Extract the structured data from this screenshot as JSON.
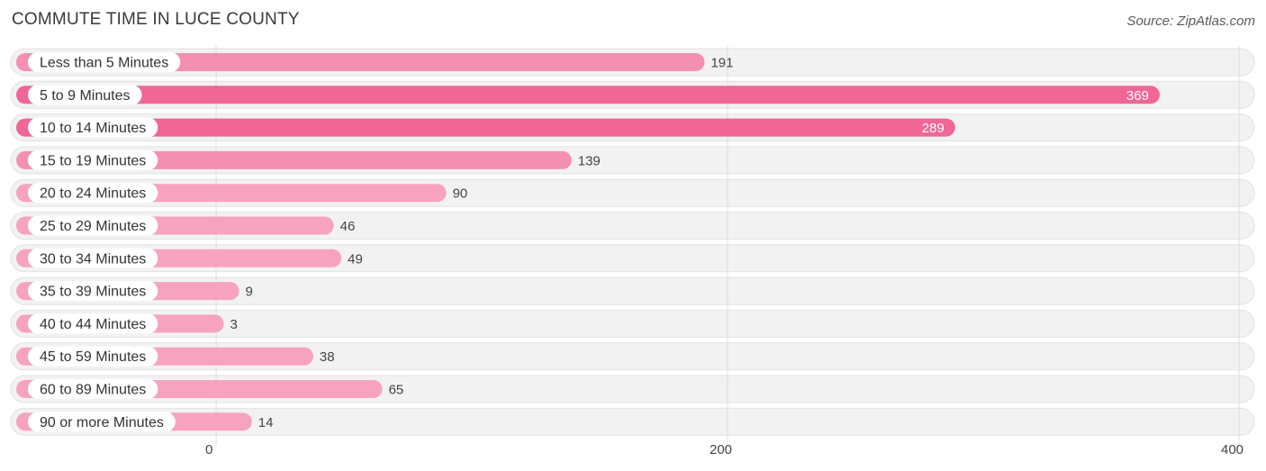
{
  "title": "COMMUTE TIME IN LUCE COUNTY",
  "source": "Source: ZipAtlas.com",
  "colors": {
    "bar_strong": "#f06694",
    "bar_light": "#f7a3bf",
    "track": "#f2f2f2",
    "track_border": "#e2e2e2",
    "grid": "#dcdcdc",
    "label_text": "#333333",
    "value_text_inside": "#ffffff",
    "value_text_outside": "#444444"
  },
  "chart_data": {
    "type": "bar",
    "orientation": "horizontal",
    "title": "COMMUTE TIME IN LUCE COUNTY",
    "categories": [
      "Less than 5 Minutes",
      "5 to 9 Minutes",
      "10 to 14 Minutes",
      "15 to 19 Minutes",
      "20 to 24 Minutes",
      "25 to 29 Minutes",
      "30 to 34 Minutes",
      "35 to 39 Minutes",
      "40 to 44 Minutes",
      "45 to 59 Minutes",
      "60 to 89 Minutes",
      "90 or more Minutes"
    ],
    "values": [
      191,
      369,
      289,
      139,
      90,
      46,
      49,
      9,
      3,
      38,
      65,
      14
    ],
    "xlim": [
      0,
      400
    ],
    "xticks": [
      0,
      200,
      400
    ],
    "xtick_labels": [
      "0",
      "200",
      "400"
    ],
    "grid": true,
    "legend": "none"
  }
}
